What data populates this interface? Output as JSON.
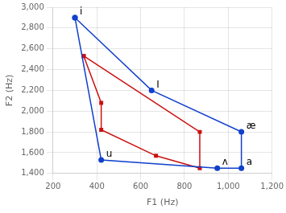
{
  "chart_data": {
    "type": "line",
    "xlabel": "F1 (Hz)",
    "ylabel": "F2 (Hz)",
    "xlim": [
      200,
      1200
    ],
    "ylim": [
      1400,
      3000
    ],
    "xticks": [
      200,
      400,
      600,
      800,
      1000,
      1200
    ],
    "yticks": [
      1400,
      1600,
      1800,
      2000,
      2200,
      2400,
      2600,
      2800,
      3000
    ],
    "grid": true,
    "series": [
      {
        "color": "#1040cc",
        "marker": "circle",
        "x": [
          300,
          650,
          1060,
          1060,
          950,
          420,
          300
        ],
        "values": [
          2900,
          2200,
          1800,
          1450,
          1450,
          1530,
          2900
        ]
      },
      {
        "color": "#cc1010",
        "marker": "square",
        "x": [
          340,
          420,
          420,
          670,
          870,
          870,
          340
        ],
        "values": [
          2530,
          2080,
          1820,
          1570,
          1450,
          1800,
          2530
        ]
      }
    ],
    "annotations": [
      {
        "text": "i",
        "x": 300,
        "y": 2900
      },
      {
        "text": "I",
        "x": 650,
        "y": 2200
      },
      {
        "text": "æ",
        "x": 1060,
        "y": 1800
      },
      {
        "text": "a",
        "x": 1060,
        "y": 1450
      },
      {
        "text": "ʌ",
        "x": 950,
        "y": 1450
      },
      {
        "text": "u",
        "x": 420,
        "y": 1530
      }
    ]
  }
}
